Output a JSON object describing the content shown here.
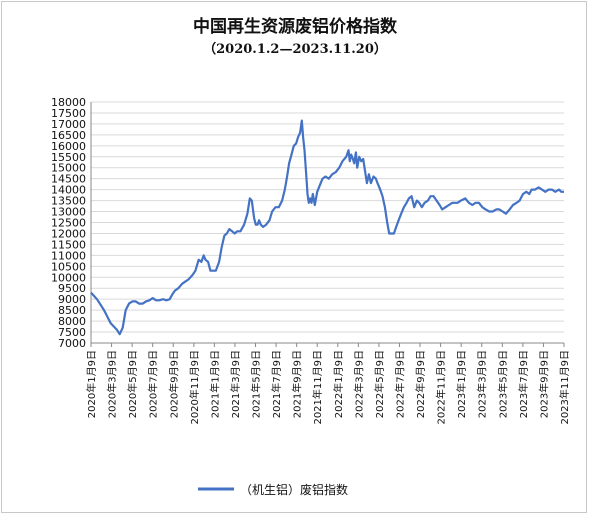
{
  "chart_data": {
    "type": "line",
    "title": "中国再生资源废铝价格指数",
    "subtitle": "（2020.1.2—2023.11.20）",
    "xlabel": "",
    "ylabel": "",
    "ylim": [
      7000,
      18000
    ],
    "yticks": [
      7000,
      7500,
      8000,
      8500,
      9000,
      9500,
      10000,
      10500,
      11000,
      11500,
      12000,
      12500,
      13000,
      13500,
      14000,
      14500,
      15000,
      15500,
      16000,
      16500,
      17000,
      17500,
      18000
    ],
    "xticks": [
      "2020年1月9日",
      "2020年3月9日",
      "2020年5月9日",
      "2020年7月9日",
      "2020年9月9日",
      "2020年11月9日",
      "2021年1月9日",
      "2021年3月9日",
      "2021年5月9日",
      "2021年7月9日",
      "2021年9月9日",
      "2021年11月9日",
      "2022年1月9日",
      "2022年3月9日",
      "2022年5月9日",
      "2022年7月9日",
      "2022年9月9日",
      "2022年11月9日",
      "2023年1月9日",
      "2023年3月9日",
      "2023年5月9日",
      "2023年7月9日",
      "2023年9月9日",
      "2023年11月9日"
    ],
    "grid": "y",
    "legend": "bottom",
    "line_color": "#4472c4",
    "series": [
      {
        "name": "（机生铝）废铝指数",
        "points": [
          [
            "2020-01-02",
            9300
          ],
          [
            "2020-01-20",
            9000
          ],
          [
            "2020-02-10",
            8500
          ],
          [
            "2020-03-01",
            7900
          ],
          [
            "2020-03-20",
            7600
          ],
          [
            "2020-03-28",
            7400
          ],
          [
            "2020-04-06",
            7700
          ],
          [
            "2020-04-15",
            8500
          ],
          [
            "2020-04-25",
            8800
          ],
          [
            "2020-05-05",
            8900
          ],
          [
            "2020-05-15",
            8900
          ],
          [
            "2020-05-25",
            8800
          ],
          [
            "2020-06-05",
            8800
          ],
          [
            "2020-06-15",
            8900
          ],
          [
            "2020-06-25",
            8950
          ],
          [
            "2020-07-05",
            9050
          ],
          [
            "2020-07-15",
            8950
          ],
          [
            "2020-07-25",
            8950
          ],
          [
            "2020-08-05",
            9000
          ],
          [
            "2020-08-15",
            8950
          ],
          [
            "2020-08-25",
            9000
          ],
          [
            "2020-09-01",
            9200
          ],
          [
            "2020-09-10",
            9400
          ],
          [
            "2020-09-20",
            9500
          ],
          [
            "2020-10-01",
            9700
          ],
          [
            "2020-10-10",
            9800
          ],
          [
            "2020-10-20",
            9900
          ],
          [
            "2020-11-01",
            10100
          ],
          [
            "2020-11-10",
            10300
          ],
          [
            "2020-11-20",
            10800
          ],
          [
            "2020-11-28",
            10700
          ],
          [
            "2020-12-05",
            11000
          ],
          [
            "2020-12-10",
            10800
          ],
          [
            "2020-12-18",
            10700
          ],
          [
            "2020-12-25",
            10300
          ],
          [
            "2021-01-10",
            10300
          ],
          [
            "2021-01-20",
            10700
          ],
          [
            "2021-01-28",
            11400
          ],
          [
            "2021-02-05",
            11900
          ],
          [
            "2021-02-12",
            12000
          ],
          [
            "2021-02-20",
            12200
          ],
          [
            "2021-02-28",
            12100
          ],
          [
            "2021-03-08",
            12000
          ],
          [
            "2021-03-15",
            12100
          ],
          [
            "2021-03-25",
            12100
          ],
          [
            "2021-04-05",
            12400
          ],
          [
            "2021-04-15",
            12900
          ],
          [
            "2021-04-22",
            13600
          ],
          [
            "2021-04-28",
            13500
          ],
          [
            "2021-05-05",
            12700
          ],
          [
            "2021-05-10",
            12400
          ],
          [
            "2021-05-15",
            12400
          ],
          [
            "2021-05-20",
            12600
          ],
          [
            "2021-05-25",
            12400
          ],
          [
            "2021-06-01",
            12300
          ],
          [
            "2021-06-10",
            12400
          ],
          [
            "2021-06-20",
            12600
          ],
          [
            "2021-06-28",
            13000
          ],
          [
            "2021-07-08",
            13200
          ],
          [
            "2021-07-18",
            13200
          ],
          [
            "2021-07-28",
            13500
          ],
          [
            "2021-08-05",
            14000
          ],
          [
            "2021-08-12",
            14600
          ],
          [
            "2021-08-18",
            15200
          ],
          [
            "2021-08-25",
            15600
          ],
          [
            "2021-09-01",
            16000
          ],
          [
            "2021-09-08",
            16100
          ],
          [
            "2021-09-14",
            16400
          ],
          [
            "2021-09-20",
            16600
          ],
          [
            "2021-09-25",
            17150
          ],
          [
            "2021-09-29",
            16400
          ],
          [
            "2021-10-03",
            15800
          ],
          [
            "2021-10-08",
            14700
          ],
          [
            "2021-10-12",
            13800
          ],
          [
            "2021-10-16",
            13400
          ],
          [
            "2021-10-20",
            13600
          ],
          [
            "2021-10-24",
            13400
          ],
          [
            "2021-10-28",
            13800
          ],
          [
            "2021-11-03",
            13300
          ],
          [
            "2021-11-10",
            13900
          ],
          [
            "2021-11-18",
            14200
          ],
          [
            "2021-11-26",
            14500
          ],
          [
            "2021-12-05",
            14600
          ],
          [
            "2021-12-15",
            14500
          ],
          [
            "2021-12-25",
            14700
          ],
          [
            "2022-01-05",
            14800
          ],
          [
            "2022-01-15",
            15000
          ],
          [
            "2022-01-25",
            15300
          ],
          [
            "2022-02-05",
            15500
          ],
          [
            "2022-02-12",
            15800
          ],
          [
            "2022-02-16",
            15300
          ],
          [
            "2022-02-20",
            15600
          ],
          [
            "2022-02-25",
            15400
          ],
          [
            "2022-03-01",
            15200
          ],
          [
            "2022-03-06",
            15700
          ],
          [
            "2022-03-10",
            15000
          ],
          [
            "2022-03-16",
            15500
          ],
          [
            "2022-03-22",
            15300
          ],
          [
            "2022-03-28",
            15400
          ],
          [
            "2022-04-03",
            14800
          ],
          [
            "2022-04-08",
            14300
          ],
          [
            "2022-04-14",
            14700
          ],
          [
            "2022-04-20",
            14300
          ],
          [
            "2022-04-28",
            14600
          ],
          [
            "2022-05-05",
            14500
          ],
          [
            "2022-05-10",
            14300
          ],
          [
            "2022-05-18",
            14000
          ],
          [
            "2022-05-25",
            13700
          ],
          [
            "2022-06-01",
            13200
          ],
          [
            "2022-06-08",
            12500
          ],
          [
            "2022-06-14",
            12000
          ],
          [
            "2022-06-20",
            12000
          ],
          [
            "2022-06-28",
            12000
          ],
          [
            "2022-07-05",
            12300
          ],
          [
            "2022-07-12",
            12600
          ],
          [
            "2022-07-20",
            12900
          ],
          [
            "2022-07-28",
            13200
          ],
          [
            "2022-08-05",
            13400
          ],
          [
            "2022-08-12",
            13600
          ],
          [
            "2022-08-20",
            13700
          ],
          [
            "2022-08-28",
            13200
          ],
          [
            "2022-09-05",
            13500
          ],
          [
            "2022-09-12",
            13400
          ],
          [
            "2022-09-20",
            13200
          ],
          [
            "2022-09-28",
            13400
          ],
          [
            "2022-10-08",
            13500
          ],
          [
            "2022-10-16",
            13700
          ],
          [
            "2022-10-25",
            13700
          ],
          [
            "2022-11-03",
            13500
          ],
          [
            "2022-11-12",
            13300
          ],
          [
            "2022-11-20",
            13100
          ],
          [
            "2022-11-30",
            13200
          ],
          [
            "2022-12-10",
            13300
          ],
          [
            "2022-12-20",
            13400
          ],
          [
            "2023-01-05",
            13400
          ],
          [
            "2023-01-15",
            13500
          ],
          [
            "2023-01-28",
            13600
          ],
          [
            "2023-02-08",
            13400
          ],
          [
            "2023-02-18",
            13300
          ],
          [
            "2023-02-28",
            13400
          ],
          [
            "2023-03-10",
            13400
          ],
          [
            "2023-03-20",
            13200
          ],
          [
            "2023-03-30",
            13100
          ],
          [
            "2023-04-10",
            13000
          ],
          [
            "2023-04-20",
            13000
          ],
          [
            "2023-05-01",
            13100
          ],
          [
            "2023-05-10",
            13100
          ],
          [
            "2023-05-20",
            13000
          ],
          [
            "2023-05-30",
            12900
          ],
          [
            "2023-06-10",
            13100
          ],
          [
            "2023-06-20",
            13300
          ],
          [
            "2023-07-01",
            13400
          ],
          [
            "2023-07-10",
            13500
          ],
          [
            "2023-07-20",
            13800
          ],
          [
            "2023-07-30",
            13900
          ],
          [
            "2023-08-08",
            13800
          ],
          [
            "2023-08-15",
            14000
          ],
          [
            "2023-08-25",
            14000
          ],
          [
            "2023-09-05",
            14100
          ],
          [
            "2023-09-15",
            14000
          ],
          [
            "2023-09-25",
            13900
          ],
          [
            "2023-10-05",
            14000
          ],
          [
            "2023-10-15",
            14000
          ],
          [
            "2023-10-25",
            13900
          ],
          [
            "2023-11-05",
            14000
          ],
          [
            "2023-11-12",
            13900
          ],
          [
            "2023-11-20",
            13900
          ]
        ]
      }
    ]
  }
}
